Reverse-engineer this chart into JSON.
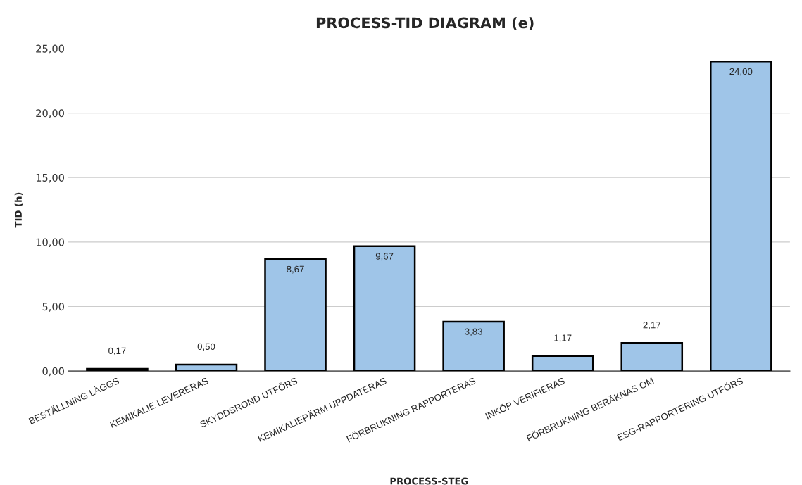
{
  "chart_data": {
    "type": "bar",
    "title": "PROCESS-TID DIAGRAM (e)",
    "xlabel": "PROCESS-STEG",
    "ylabel": "TID (h)",
    "categories": [
      "BESTÄLLNING LÄGGS",
      "KEMIKALIE LEVERERAS",
      "SKYDDSROND UTFÖRS",
      "KEMIKALIEPÄRM UPPDATERAS",
      "FÖRBRUKNING RAPPORTERAS",
      "INKÖP VERIFIERAS",
      "FÖRBRUKNING BERÄKNAS OM",
      "ESG-RAPPORTERING UTFÖRS"
    ],
    "values": [
      0.17,
      0.5,
      8.67,
      9.67,
      3.83,
      1.17,
      2.17,
      24.0
    ],
    "value_labels": [
      "0,17",
      "0,50",
      "8,67",
      "9,67",
      "3,83",
      "1,17",
      "2,17",
      "24,00"
    ],
    "color": "#9fc5e8",
    "ylim": [
      0,
      25
    ],
    "yticks": [
      {
        "value": 0,
        "label": "0,00"
      },
      {
        "value": 5,
        "label": "5,00"
      },
      {
        "value": 10,
        "label": "10,00"
      },
      {
        "value": 15,
        "label": "15,00"
      },
      {
        "value": 20,
        "label": "20,00"
      },
      {
        "value": 25,
        "label": "25,00"
      }
    ],
    "grid": "y"
  }
}
